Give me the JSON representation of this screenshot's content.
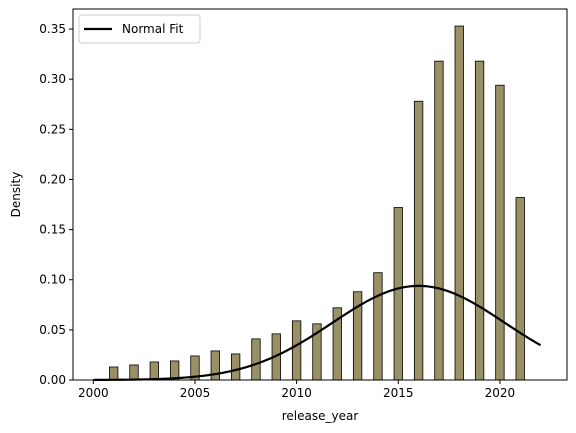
{
  "chart_data": {
    "type": "bar",
    "title": "",
    "xlabel": "release_year",
    "ylabel": "Density",
    "xlim": [
      1999.0,
      2023.3
    ],
    "ylim": [
      0,
      0.37
    ],
    "x_ticks": [
      2000,
      2005,
      2010,
      2015,
      2020
    ],
    "x_tick_labels": [
      "2000",
      "2005",
      "2010",
      "2015",
      "2020"
    ],
    "y_ticks": [
      0,
      0.05,
      0.1,
      0.15,
      0.2,
      0.25,
      0.3,
      0.35
    ],
    "y_tick_labels": [
      "0.00",
      "0.05",
      "0.10",
      "0.15",
      "0.20",
      "0.25",
      "0.30",
      "0.35"
    ],
    "grid": false,
    "legend_position": "upper-left",
    "bar_color": "#999066",
    "bar_edge_color": "#000000",
    "histogram": {
      "x": [
        2001,
        2002,
        2003,
        2004,
        2005,
        2006,
        2007,
        2008,
        2009,
        2010,
        2011,
        2012,
        2013,
        2014,
        2015,
        2016,
        2017,
        2018,
        2019,
        2020,
        2021
      ],
      "values": [
        0.013,
        0.015,
        0.018,
        0.019,
        0.024,
        0.029,
        0.026,
        0.041,
        0.046,
        0.059,
        0.056,
        0.072,
        0.088,
        0.107,
        0.172,
        0.278,
        0.318,
        0.353,
        0.318,
        0.294,
        0.182
      ]
    },
    "series": [
      {
        "name": "Normal Fit",
        "type": "line",
        "color": "#000000",
        "mean": 2016.0,
        "std": 4.25,
        "x_range": [
          2000,
          2022
        ]
      }
    ]
  }
}
